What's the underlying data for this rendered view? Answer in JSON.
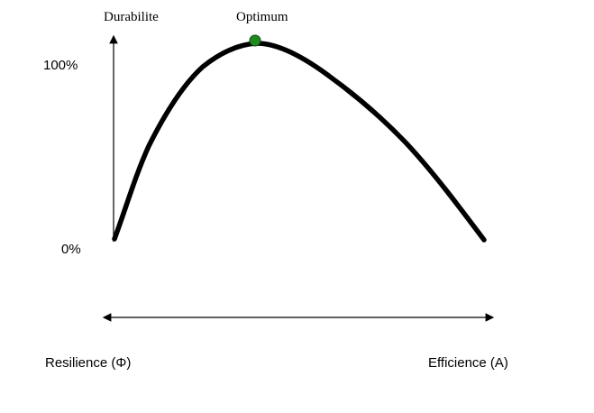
{
  "y_axis": {
    "title": "Durabilite",
    "top_label": "100%",
    "bottom_label": "0%"
  },
  "peak_label": "Optimum",
  "x_axis": {
    "left_label": "Resilience (Φ)",
    "right_label": "Efficience (A)"
  }
}
